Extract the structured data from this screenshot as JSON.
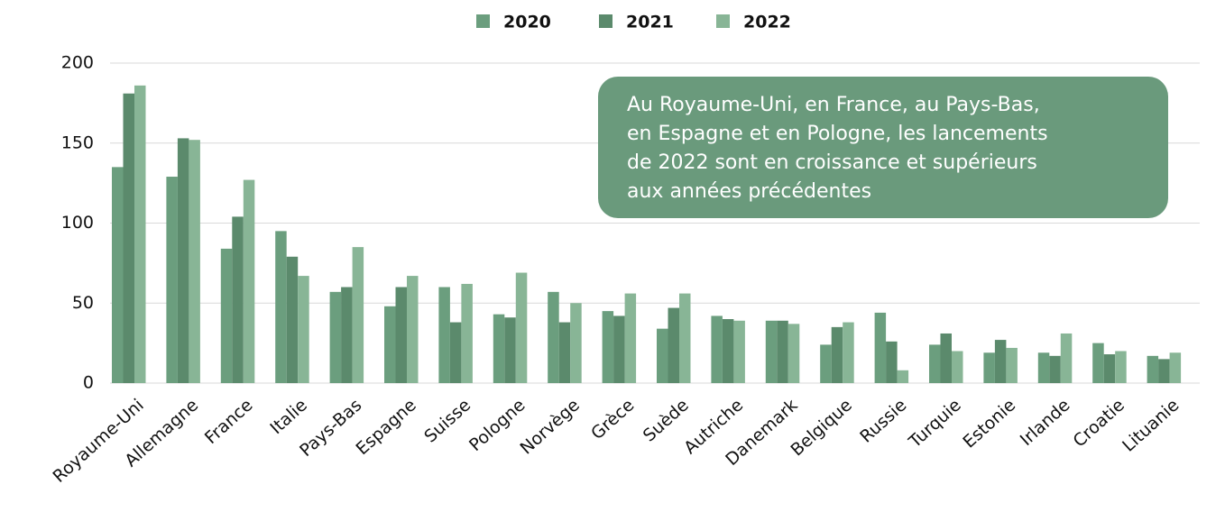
{
  "chart_data": {
    "type": "bar",
    "categories": [
      "Royaume-Uni",
      "Allemagne",
      "France",
      "Italie",
      "Pays-Bas",
      "Espagne",
      "Suisse",
      "Pologne",
      "Norvège",
      "Grèce",
      "Suède",
      "Autriche",
      "Danemark",
      "Belgique",
      "Russie",
      "Turquie",
      "Estonie",
      "Irlande",
      "Croatie",
      "Lituanie"
    ],
    "series": [
      {
        "name": "2020",
        "color": "#6b9e7e",
        "values": [
          135,
          129,
          84,
          95,
          57,
          48,
          60,
          43,
          57,
          45,
          34,
          42,
          39,
          24,
          44,
          24,
          19,
          19,
          25,
          17
        ]
      },
      {
        "name": "2021",
        "color": "#5b8a6c",
        "values": [
          181,
          153,
          104,
          79,
          60,
          60,
          38,
          41,
          38,
          42,
          47,
          40,
          39,
          35,
          26,
          31,
          27,
          17,
          18,
          15
        ]
      },
      {
        "name": "2022",
        "color": "#88b596",
        "values": [
          186,
          152,
          127,
          67,
          85,
          67,
          62,
          69,
          50,
          56,
          56,
          39,
          37,
          38,
          8,
          20,
          22,
          31,
          20,
          19
        ]
      }
    ],
    "ylim": [
      0,
      200
    ],
    "yticks": [
      0,
      50,
      100,
      150,
      200
    ],
    "grid": true,
    "annotation": [
      "Au Royaume-Uni, en France, au Pays-Bas,",
      "en Espagne et en Pologne, les lancements",
      "de 2022 sont en croissance et supérieurs",
      "aux années précédentes"
    ]
  }
}
